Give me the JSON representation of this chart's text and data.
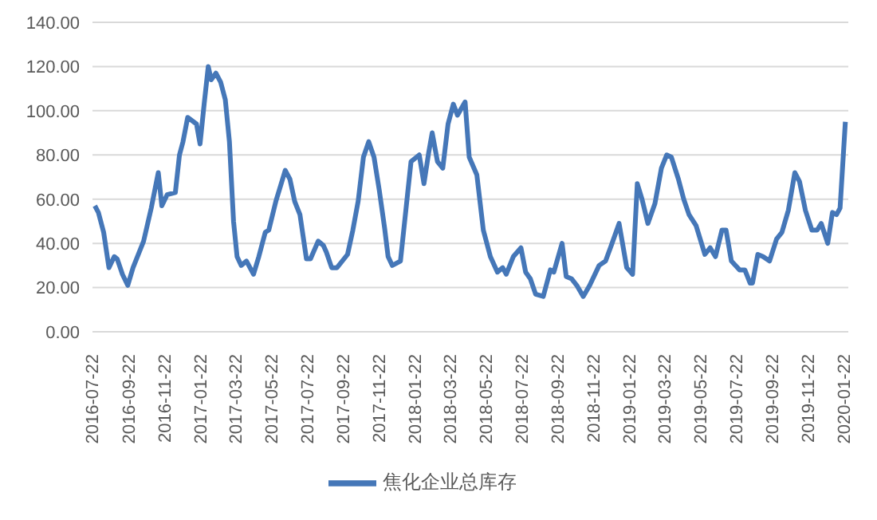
{
  "chart_data": {
    "type": "line",
    "x": [
      "2016-07-24",
      "2016-07-30",
      "2016-08-08",
      "2016-08-17",
      "2016-08-26",
      "2016-08-31",
      "2016-09-09",
      "2016-09-18",
      "2016-09-27",
      "2016-10-15",
      "2016-10-28",
      "2016-11-09",
      "2016-11-15",
      "2016-11-24",
      "2016-12-08",
      "2016-12-15",
      "2016-12-21",
      "2016-12-29",
      "2017-01-13",
      "2017-01-19",
      "2017-01-26",
      "2017-02-02",
      "2017-02-07",
      "2017-02-15",
      "2017-02-23",
      "2017-03-03",
      "2017-03-10",
      "2017-03-17",
      "2017-03-23",
      "2017-03-30",
      "2017-04-08",
      "2017-04-20",
      "2017-04-29",
      "2017-05-10",
      "2017-05-16",
      "2017-05-28",
      "2017-06-13",
      "2017-06-21",
      "2017-06-29",
      "2017-07-08",
      "2017-07-19",
      "2017-07-26",
      "2017-08-08",
      "2017-08-17",
      "2017-08-22",
      "2017-08-31",
      "2017-09-09",
      "2017-09-27",
      "2017-10-06",
      "2017-10-15",
      "2017-10-24",
      "2017-11-02",
      "2017-11-11",
      "2017-11-20",
      "2017-11-29",
      "2017-12-05",
      "2017-12-12",
      "2017-12-26",
      "2018-01-07",
      "2018-01-13",
      "2018-01-27",
      "2018-02-04",
      "2018-02-12",
      "2018-02-18",
      "2018-02-27",
      "2018-03-08",
      "2018-03-17",
      "2018-03-26",
      "2018-04-02",
      "2018-04-15",
      "2018-04-22",
      "2018-05-05",
      "2018-05-16",
      "2018-05-28",
      "2018-06-09",
      "2018-06-18",
      "2018-06-24",
      "2018-07-06",
      "2018-07-19",
      "2018-07-27",
      "2018-08-04",
      "2018-08-13",
      "2018-08-26",
      "2018-09-07",
      "2018-09-13",
      "2018-09-27",
      "2018-10-04",
      "2018-10-13",
      "2018-10-22",
      "2018-11-02",
      "2018-11-13",
      "2018-11-29",
      "2018-12-10",
      "2018-12-21",
      "2019-01-02",
      "2019-01-15",
      "2019-01-25",
      "2019-02-02",
      "2019-02-10",
      "2019-02-20",
      "2019-03-04",
      "2019-03-15",
      "2019-03-24",
      "2019-04-01",
      "2019-04-13",
      "2019-04-22",
      "2019-05-01",
      "2019-05-13",
      "2019-05-28",
      "2019-06-06",
      "2019-06-15",
      "2019-06-26",
      "2019-07-03",
      "2019-07-12",
      "2019-07-26",
      "2019-08-04",
      "2019-08-13",
      "2019-08-17",
      "2019-08-26",
      "2019-09-04",
      "2019-09-15",
      "2019-09-27",
      "2019-10-06",
      "2019-10-17",
      "2019-10-28",
      "2019-11-05",
      "2019-11-15",
      "2019-11-26",
      "2019-12-05",
      "2019-12-12",
      "2019-12-23",
      "2019-12-31",
      "2020-01-07",
      "2020-01-13",
      "2020-01-22"
    ],
    "series": [
      {
        "name": "焦化企业总库存",
        "color": "#4577b8",
        "values": [
          57,
          54,
          45,
          29,
          34,
          33,
          26,
          21,
          29,
          41,
          56,
          72,
          57,
          62,
          63,
          80,
          86,
          97,
          94,
          85,
          103,
          120,
          114,
          117,
          113,
          105,
          86,
          50,
          34,
          30,
          32,
          26,
          34,
          45,
          46,
          59,
          73,
          69,
          59,
          53,
          33,
          33,
          41,
          39,
          36,
          29,
          29,
          35,
          46,
          59,
          79,
          86,
          79,
          64,
          47,
          34,
          30,
          32,
          62,
          77,
          80,
          67,
          81,
          90,
          77,
          74,
          94,
          103,
          98,
          104,
          79,
          71,
          46,
          34,
          27,
          29,
          26,
          34,
          38,
          27,
          24,
          17,
          16,
          28,
          27,
          40,
          25,
          24,
          21,
          16,
          21,
          30,
          32,
          40,
          49,
          29,
          26,
          67,
          60,
          49,
          58,
          74,
          80,
          79,
          69,
          60,
          53,
          48,
          35,
          38,
          34,
          46,
          46,
          32,
          28,
          28,
          22,
          22,
          35,
          34,
          32,
          42,
          45,
          55,
          72,
          68,
          55,
          46,
          46,
          49,
          40,
          54,
          53,
          56,
          95
        ]
      }
    ],
    "xlim": [
      "2016-07-20",
      "2020-01-27"
    ],
    "xticks": [
      "2016-07-22",
      "2016-09-22",
      "2016-11-22",
      "2017-01-22",
      "2017-03-22",
      "2017-05-22",
      "2017-07-22",
      "2017-09-22",
      "2017-11-22",
      "2018-01-22",
      "2018-03-22",
      "2018-05-22",
      "2018-07-22",
      "2018-09-22",
      "2018-11-22",
      "2019-01-22",
      "2019-03-22",
      "2019-05-22",
      "2019-07-22",
      "2019-09-22",
      "2019-11-22",
      "2020-01-22"
    ],
    "ylim": [
      0,
      140
    ],
    "yticks": [
      {
        "value": 0,
        "label": "0.00"
      },
      {
        "value": 20,
        "label": "20.00"
      },
      {
        "value": 40,
        "label": "40.00"
      },
      {
        "value": 60,
        "label": "60.00"
      },
      {
        "value": 80,
        "label": "80.00"
      },
      {
        "value": 100,
        "label": "100.00"
      },
      {
        "value": 120,
        "label": "120.00"
      },
      {
        "value": 140,
        "label": "140.00"
      }
    ],
    "grid": "y",
    "legend": "bottom",
    "marker": "none",
    "line_style": "solid"
  }
}
